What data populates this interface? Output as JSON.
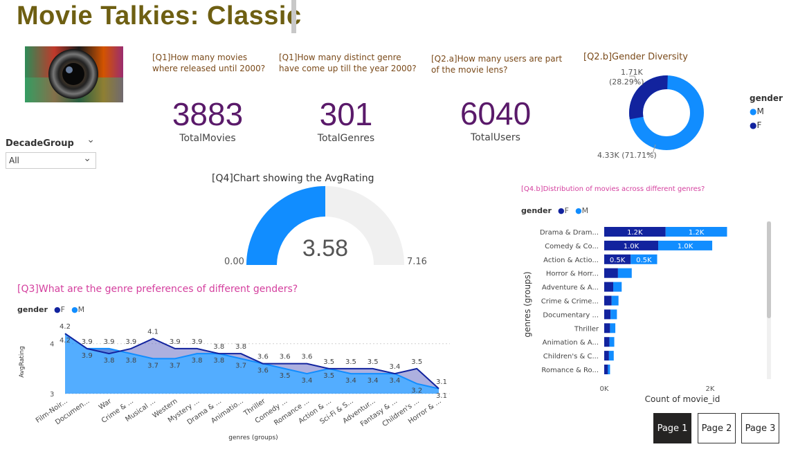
{
  "header": {
    "title": "Movie Talkies: Classic"
  },
  "kpis": [
    {
      "question": "[Q1]How many movies where released until 2000?",
      "value": "3883",
      "label": "TotalMovies"
    },
    {
      "question": "[Q1]How many distinct genre have come up till the year 2000?",
      "value": "301",
      "label": "TotalGenres"
    },
    {
      "question": "[Q2.a]How many users are part of the movie lens?",
      "value": "6040",
      "label": "TotalUsers"
    }
  ],
  "slicer": {
    "label": "DecadeGroup",
    "value": "All"
  },
  "colors": {
    "F": "#12239e",
    "M": "#118dff",
    "gauge_bg": "#f0f0f0",
    "title_gold": "#6e5f12",
    "kpi_purple": "#5a1a6a",
    "pink": "#d43f9e"
  },
  "icons": {
    "slicer_expand": "chevron-down-icon"
  },
  "donut": {
    "title": "[Q2.b]Gender Diversity",
    "legend_title": "gender",
    "legend": [
      "M",
      "F"
    ],
    "labels": {
      "F": "1.71K",
      "F_pct": "(28.29%)",
      "M": "4.33K (71.71%)"
    }
  },
  "gauge": {
    "title": "[Q4]Chart showing the AvgRating",
    "min_label": "0.00",
    "max_label": "7.16",
    "value_label": "3.58"
  },
  "line_chart": {
    "title": "[Q3]What are the genre preferences of different genders?",
    "legend_title": "gender",
    "legend": [
      "F",
      "M"
    ]
  },
  "bar_chart": {
    "title": "[Q4.b]Distribution of movies across different genres?",
    "legend_title": "gender",
    "legend": [
      "F",
      "M"
    ]
  },
  "pages": [
    "Page 1",
    "Page 2",
    "Page 3"
  ],
  "chart_data": [
    {
      "type": "pie",
      "title": "[Q2.b]Gender Diversity",
      "categories": [
        "M",
        "F"
      ],
      "values": [
        4331,
        1709
      ],
      "labels": [
        "4.33K (71.71%)",
        "1.71K (28.29%)"
      ],
      "donut": true
    },
    {
      "type": "gauge",
      "title": "[Q4]Chart showing the AvgRating",
      "value": 3.58,
      "min": 0,
      "max": 7.16
    },
    {
      "type": "area",
      "title": "[Q3]What are the genre preferences of different genders?",
      "xlabel": "genres (groups)",
      "ylabel": "AvgRating",
      "ylim": [
        3,
        4.3
      ],
      "yticks": [
        "3",
        "4"
      ],
      "grid": true,
      "categories": [
        "Film-Noir...",
        "Documen...",
        "War",
        "Crime & ...",
        "Musical ...",
        "Western",
        "Mystery ...",
        "Drama & ...",
        "Animatio...",
        "Thriller",
        "Comedy ...",
        "Romance ...",
        "Action & ...",
        "Sci-Fi & S...",
        "Adventur...",
        "Fantasy & ...",
        "Children's ...",
        "Horror & ..."
      ],
      "series": [
        {
          "name": "F",
          "values": [
            4.2,
            3.9,
            3.8,
            3.9,
            4.1,
            3.9,
            3.9,
            3.8,
            3.8,
            3.6,
            3.6,
            3.6,
            3.5,
            3.5,
            3.5,
            3.4,
            3.5,
            3.1
          ],
          "labels": [
            "4.2",
            "3.9",
            "3.8",
            "3.9",
            "4.1",
            "3.9",
            "3.9",
            "3.8",
            "3.8",
            "3.6",
            "3.6",
            "3.6",
            "3.5",
            "3.5",
            "3.5",
            "3.4",
            "3.5",
            "3.1"
          ]
        },
        {
          "name": "M",
          "values": [
            4.2,
            3.9,
            3.9,
            3.8,
            3.7,
            3.7,
            3.8,
            3.8,
            3.7,
            3.6,
            3.5,
            3.4,
            3.5,
            3.4,
            3.4,
            3.4,
            3.2,
            3.1
          ],
          "labels": [
            "4.2",
            "3.9",
            "3.9",
            "3.8",
            "3.7",
            "3.7",
            "3.8",
            "3.8",
            "3.7",
            "3.6",
            "3.5",
            "3.4",
            "3.5",
            "3.4",
            "3.4",
            "3.4",
            "3.2",
            "3.1"
          ]
        }
      ]
    },
    {
      "type": "bar",
      "orientation": "horizontal",
      "stacked": true,
      "title": "[Q4.b]Distribution of movies across different genres?",
      "xlabel": "Count of movie_id",
      "ylabel": "genres (groups)",
      "xlim": [
        0,
        2500
      ],
      "xticks": [
        "0K",
        "2K"
      ],
      "categories": [
        "Drama & Dram...",
        "Comedy & Co...",
        "Action & Actio...",
        "Horror & Horr...",
        "Adventure & A...",
        "Crime & Crime...",
        "Documentary ...",
        "Thriller",
        "Animation & A...",
        "Children's & C...",
        "Romance & Ro..."
      ],
      "series": [
        {
          "name": "F",
          "values": [
            1160,
            1020,
            500,
            260,
            170,
            140,
            120,
            110,
            100,
            90,
            70
          ],
          "labels": [
            "1.2K",
            "1.0K",
            "0.5K",
            "",
            "",
            "",
            "",
            "",
            "",
            "",
            ""
          ]
        },
        {
          "name": "M",
          "values": [
            1160,
            1020,
            500,
            260,
            160,
            130,
            120,
            100,
            90,
            90,
            40
          ],
          "labels": [
            "1.2K",
            "1.0K",
            "0.5K",
            "",
            "",
            "",
            "",
            "",
            "",
            "",
            ""
          ]
        }
      ]
    }
  ]
}
